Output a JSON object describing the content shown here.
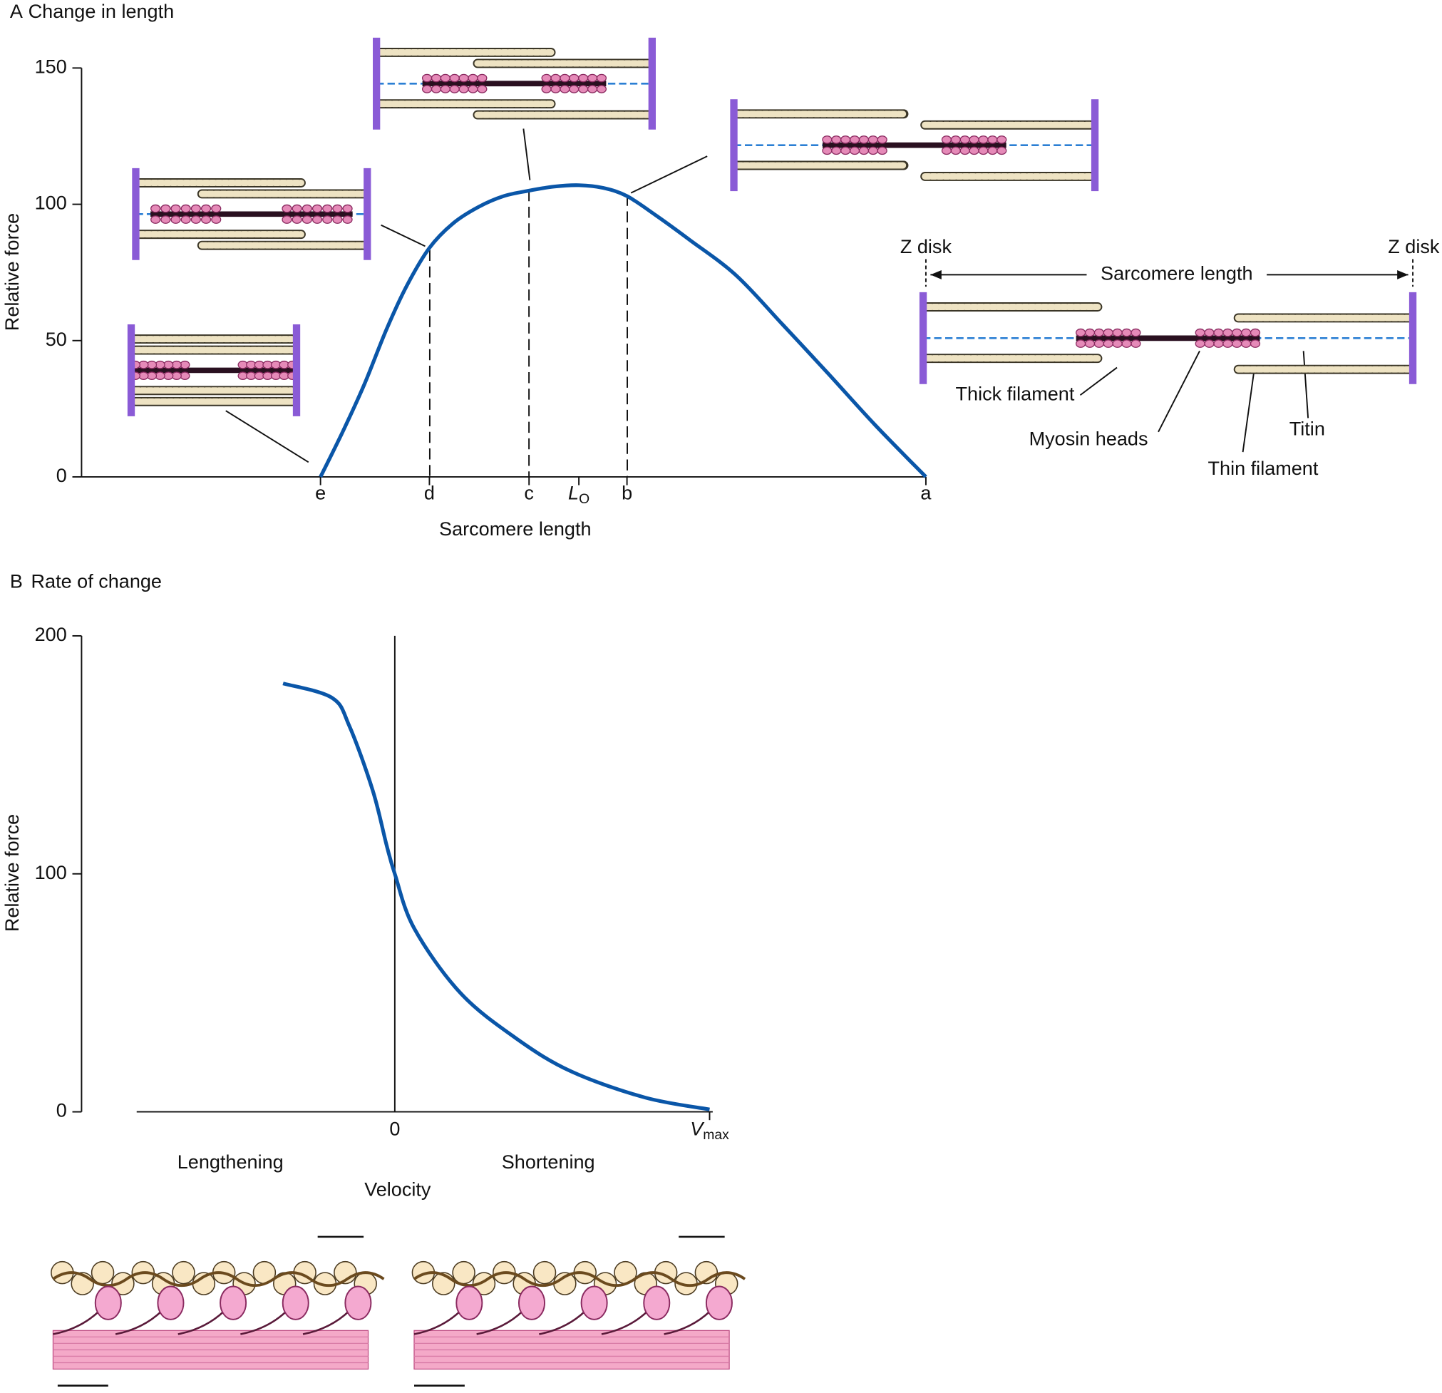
{
  "chart_data": [
    {
      "type": "line",
      "panel_label": "A",
      "title": "Change in length",
      "xlabel": "Sarcomere length",
      "ylabel": "Relative force",
      "x": [
        28.3,
        31,
        33.5,
        36.1,
        38.5,
        41.2,
        44,
        47,
        50,
        53,
        56,
        58.9,
        61.8,
        64.6,
        68,
        72,
        77.5,
        83,
        88.4,
        94,
        100
      ],
      "series": [
        {
          "color": "#0a56a8",
          "values": [
            0,
            17,
            34,
            54,
            70,
            84,
            93,
            99,
            103,
            105,
            106.5,
            107,
            106,
            103,
            96,
            87,
            74,
            56,
            38,
            19,
            0
          ]
        }
      ],
      "xlim": [
        0,
        100
      ],
      "ylim": [
        0,
        150
      ],
      "yticks": [
        0,
        50,
        100,
        150
      ],
      "xticks": [
        {
          "value": 28.3,
          "label": "e"
        },
        {
          "value": 41.2,
          "label": "d"
        },
        {
          "value": 53,
          "label": "c"
        },
        {
          "value": 58.9,
          "label": "L",
          "subscript": "O"
        },
        {
          "value": 64.6,
          "label": "b"
        },
        {
          "value": 100,
          "label": "a"
        }
      ],
      "annotations": [
        "Z disk",
        "Z disk",
        "Sarcomere length",
        "Thick filament",
        "Myosin heads",
        "Titin",
        "Thin filament"
      ]
    },
    {
      "type": "line",
      "panel_label": "B",
      "title": "Rate of change",
      "xlabel": "Velocity",
      "ylabel": "Relative force",
      "x": [
        -0.355,
        -0.2,
        -0.144,
        -0.07,
        -0.026,
        0,
        0.062,
        0.208,
        0.384,
        0.56,
        0.795,
        1
      ],
      "series": [
        {
          "color": "#0a56a8",
          "values": [
            180,
            174,
            162,
            135,
            112,
            100,
            77,
            50,
            31,
            17,
            6,
            1
          ]
        }
      ],
      "xlim": [
        -0.82,
        1.01
      ],
      "ylim": [
        0,
        200
      ],
      "yticks": [
        0,
        100,
        200
      ],
      "xticks": [
        0,
        {
          "value": 1,
          "label": "V",
          "subscript": "max"
        }
      ],
      "region_labels": [
        "Lengthening",
        "Shortening"
      ]
    }
  ]
}
